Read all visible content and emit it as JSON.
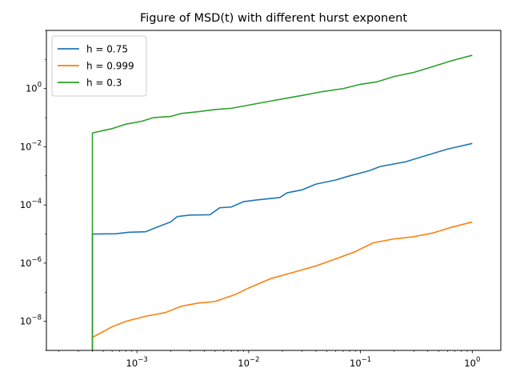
{
  "chart_data": {
    "type": "line",
    "title": "Figure of MSD(t) with different hurst exponent",
    "xlabel": "",
    "ylabel": "",
    "xscale": "log",
    "yscale": "log",
    "xlim": [
      0.000155,
      1.8
    ],
    "ylim": [
      1e-09,
      100.0
    ],
    "grid": false,
    "legend_position": "top-left",
    "x_ticks": [
      {
        "value": 0.001,
        "base": "10",
        "exp": "−3"
      },
      {
        "value": 0.01,
        "base": "10",
        "exp": "−2"
      },
      {
        "value": 0.1,
        "base": "10",
        "exp": "−1"
      },
      {
        "value": 1,
        "base": "10",
        "exp": "0"
      }
    ],
    "y_ticks": [
      {
        "value": 1e-08,
        "base": "10",
        "exp": "−8"
      },
      {
        "value": 1e-06,
        "base": "10",
        "exp": "−6"
      },
      {
        "value": 0.0001,
        "base": "10",
        "exp": "−4"
      },
      {
        "value": 0.01,
        "base": "10",
        "exp": "−2"
      },
      {
        "value": 1,
        "base": "10",
        "exp": "0"
      }
    ],
    "series": [
      {
        "name": "h = 0.75",
        "color": "#1f77b4",
        "points": [
          [
            0.0004,
            1e-10
          ],
          [
            0.0004,
            1e-05
          ],
          [
            0.00065,
            1.02e-05
          ],
          [
            0.00085,
            1.15e-05
          ],
          [
            0.0012,
            1.2e-05
          ],
          [
            0.0015,
            1.7e-05
          ],
          [
            0.002,
            2.6e-05
          ],
          [
            0.0023,
            4e-05
          ],
          [
            0.003,
            4.5e-05
          ],
          [
            0.0045,
            4.6e-05
          ],
          [
            0.0055,
            8e-05
          ],
          [
            0.007,
            8.5e-05
          ],
          [
            0.009,
            0.00013
          ],
          [
            0.012,
            0.00015
          ],
          [
            0.019,
            0.00018
          ],
          [
            0.022,
            0.00026
          ],
          [
            0.03,
            0.00033
          ],
          [
            0.04,
            0.00052
          ],
          [
            0.06,
            0.00072
          ],
          [
            0.08,
            0.001
          ],
          [
            0.12,
            0.0015
          ],
          [
            0.15,
            0.0021
          ],
          [
            0.25,
            0.003
          ],
          [
            0.4,
            0.0052
          ],
          [
            0.6,
            0.0083
          ],
          [
            1.0,
            0.013
          ]
        ]
      },
      {
        "name": "h = 0.999",
        "color": "#ff7f0e",
        "points": [
          [
            0.0004,
            1e-10
          ],
          [
            0.0004,
            2.8e-09
          ],
          [
            0.0006,
            6.5e-09
          ],
          [
            0.0008,
            1e-08
          ],
          [
            0.0012,
            1.5e-08
          ],
          [
            0.0018,
            2e-08
          ],
          [
            0.0025,
            3.3e-08
          ],
          [
            0.0035,
            4.2e-08
          ],
          [
            0.005,
            4.8e-08
          ],
          [
            0.0075,
            8.2e-08
          ],
          [
            0.01,
            1.4e-07
          ],
          [
            0.016,
            3e-07
          ],
          [
            0.025,
            4.8e-07
          ],
          [
            0.04,
            8e-07
          ],
          [
            0.06,
            1.4e-06
          ],
          [
            0.09,
            2.5e-06
          ],
          [
            0.13,
            5e-06
          ],
          [
            0.2,
            6.8e-06
          ],
          [
            0.3,
            8.1e-06
          ],
          [
            0.45,
            1.1e-05
          ],
          [
            0.65,
            1.7e-05
          ],
          [
            1.0,
            2.6e-05
          ]
        ]
      },
      {
        "name": "h = 0.3",
        "color": "#2ca02c",
        "points": [
          [
            0.0004,
            1e-10
          ],
          [
            0.0004,
            0.03
          ],
          [
            0.0006,
            0.042
          ],
          [
            0.0008,
            0.06
          ],
          [
            0.0011,
            0.075
          ],
          [
            0.0014,
            0.1
          ],
          [
            0.002,
            0.11
          ],
          [
            0.0025,
            0.14
          ],
          [
            0.0035,
            0.16
          ],
          [
            0.005,
            0.19
          ],
          [
            0.007,
            0.21
          ],
          [
            0.01,
            0.27
          ],
          [
            0.015,
            0.36
          ],
          [
            0.02,
            0.44
          ],
          [
            0.03,
            0.58
          ],
          [
            0.045,
            0.78
          ],
          [
            0.07,
            1.0
          ],
          [
            0.1,
            1.4
          ],
          [
            0.14,
            1.7
          ],
          [
            0.2,
            2.6
          ],
          [
            0.3,
            3.6
          ],
          [
            0.45,
            5.8
          ],
          [
            0.65,
            9.0
          ],
          [
            1.0,
            14.0
          ]
        ]
      }
    ]
  }
}
